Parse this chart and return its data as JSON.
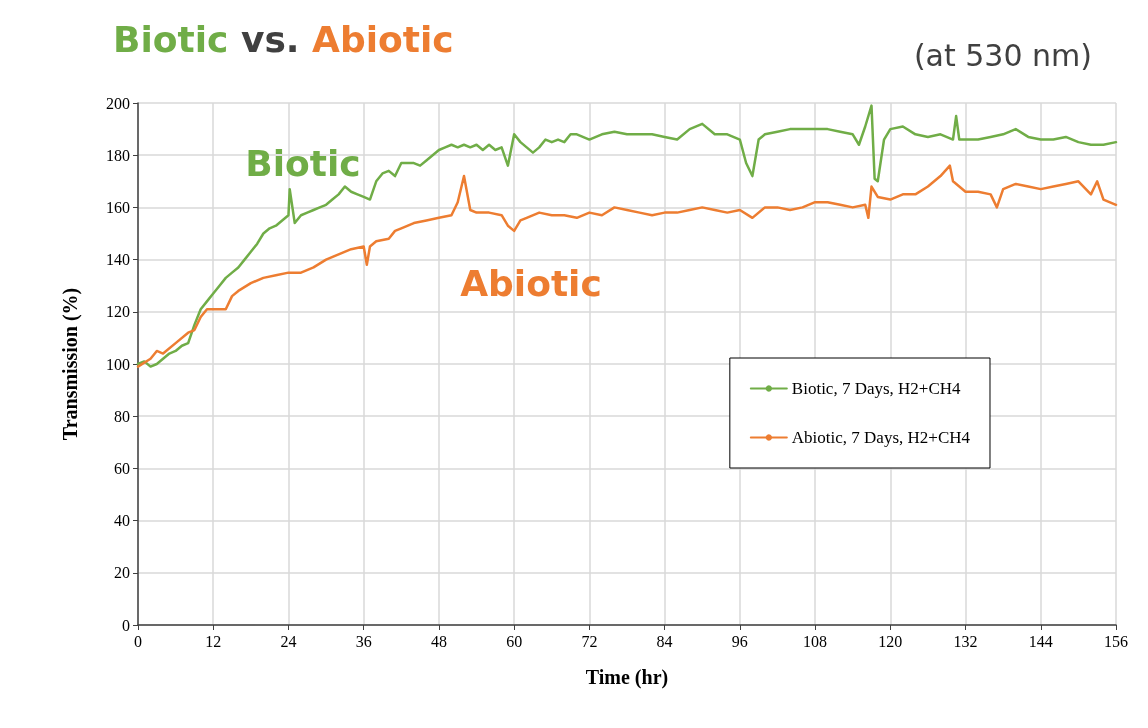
{
  "chart_data": {
    "type": "line",
    "title": "Biotic vs. Abiotic",
    "subtitle": "(at 530 nm)",
    "xlabel": "Time (hr)",
    "ylabel": "Transmission (%)",
    "annotations": [
      "Biotic",
      "Abiotic"
    ],
    "xlim": [
      0,
      156
    ],
    "xticks": [
      0,
      12,
      24,
      36,
      48,
      60,
      72,
      84,
      96,
      108,
      120,
      132,
      144,
      156
    ],
    "ylim": [
      0,
      200
    ],
    "yticks": [
      0,
      20,
      40,
      60,
      80,
      100,
      120,
      140,
      160,
      180,
      200
    ],
    "grid": true,
    "legend": "right",
    "line_style": "solid",
    "series": [
      {
        "name": "Biotic, 7 Days, H2+CH4",
        "color": "#70ad47",
        "x": [
          0,
          1,
          2,
          3,
          4,
          5,
          6,
          7,
          8,
          9,
          10,
          11,
          12,
          13,
          14,
          15,
          16,
          17,
          18,
          19,
          20,
          21,
          22,
          23,
          24,
          24.2,
          25,
          26,
          27,
          28,
          29,
          30,
          31,
          32,
          33,
          34,
          35,
          36,
          37,
          38,
          39,
          40,
          41,
          42,
          43,
          44,
          45,
          46,
          47,
          48,
          49,
          50,
          51,
          52,
          53,
          54,
          55,
          56,
          57,
          58,
          59,
          60,
          61,
          62,
          63,
          64,
          65,
          66,
          67,
          68,
          69,
          70,
          72,
          74,
          76,
          78,
          80,
          82,
          84,
          86,
          88,
          90,
          92,
          94,
          96,
          97,
          98,
          99,
          100,
          102,
          104,
          106,
          108,
          110,
          112,
          114,
          115,
          116,
          117,
          117.5,
          118,
          119,
          120,
          122,
          124,
          126,
          128,
          130,
          130.5,
          131,
          134,
          136,
          138,
          140,
          142,
          144,
          146,
          148,
          150,
          152,
          154,
          156
        ],
        "values": [
          100,
          101,
          99,
          100,
          102,
          104,
          105,
          107,
          108,
          115,
          121,
          124,
          127,
          130,
          133,
          135,
          137,
          140,
          143,
          146,
          150,
          152,
          153,
          155,
          157,
          167,
          154,
          157,
          158,
          159,
          160,
          161,
          163,
          165,
          168,
          166,
          165,
          164,
          163,
          170,
          173,
          174,
          172,
          177,
          177,
          177,
          176,
          178,
          180,
          182,
          183,
          184,
          183,
          184,
          183,
          184,
          182,
          184,
          182,
          183,
          176,
          188,
          185,
          183,
          181,
          183,
          186,
          185,
          186,
          185,
          188,
          188,
          186,
          188,
          189,
          188,
          188,
          188,
          187,
          186,
          190,
          192,
          188,
          188,
          186,
          177,
          172,
          186,
          188,
          189,
          190,
          190,
          190,
          190,
          189,
          188,
          184,
          191,
          199,
          171,
          170,
          186,
          190,
          191,
          188,
          187,
          188,
          186,
          195,
          186,
          186,
          187,
          188,
          190,
          187,
          186,
          186,
          187,
          185,
          184,
          184,
          185
        ]
      },
      {
        "name": "Abiotic, 7 Days, H2+CH4",
        "color": "#ed7d31",
        "x": [
          0,
          2,
          3,
          4,
          6,
          8,
          9,
          10,
          11,
          12,
          13,
          14,
          15,
          16,
          18,
          20,
          22,
          24,
          26,
          28,
          30,
          32,
          34,
          36,
          36.5,
          37,
          38,
          40,
          41,
          42,
          44,
          46,
          48,
          50,
          51,
          52,
          53,
          54,
          56,
          58,
          59,
          60,
          61,
          62,
          64,
          66,
          68,
          70,
          72,
          74,
          76,
          78,
          80,
          82,
          84,
          86,
          88,
          90,
          92,
          94,
          96,
          98,
          100,
          102,
          104,
          106,
          108,
          110,
          112,
          114,
          116,
          116.5,
          117,
          118,
          120,
          122,
          124,
          126,
          128,
          129.5,
          130,
          132,
          134,
          136,
          137,
          138,
          140,
          142,
          144,
          146,
          148,
          150,
          152,
          153,
          154,
          156
        ],
        "values": [
          99,
          102,
          105,
          104,
          108,
          112,
          113,
          118,
          121,
          121,
          121,
          121,
          126,
          128,
          131,
          133,
          134,
          135,
          135,
          137,
          140,
          142,
          144,
          145,
          138,
          145,
          147,
          148,
          151,
          152,
          154,
          155,
          156,
          157,
          162,
          172,
          159,
          158,
          158,
          157,
          153,
          151,
          155,
          156,
          158,
          157,
          157,
          156,
          158,
          157,
          160,
          159,
          158,
          157,
          158,
          158,
          159,
          160,
          159,
          158,
          159,
          156,
          160,
          160,
          159,
          160,
          162,
          162,
          161,
          160,
          161,
          156,
          168,
          164,
          163,
          165,
          165,
          168,
          172,
          176,
          170,
          166,
          166,
          165,
          160,
          167,
          169,
          168,
          167,
          168,
          169,
          170,
          165,
          170,
          163,
          161
        ]
      }
    ]
  }
}
